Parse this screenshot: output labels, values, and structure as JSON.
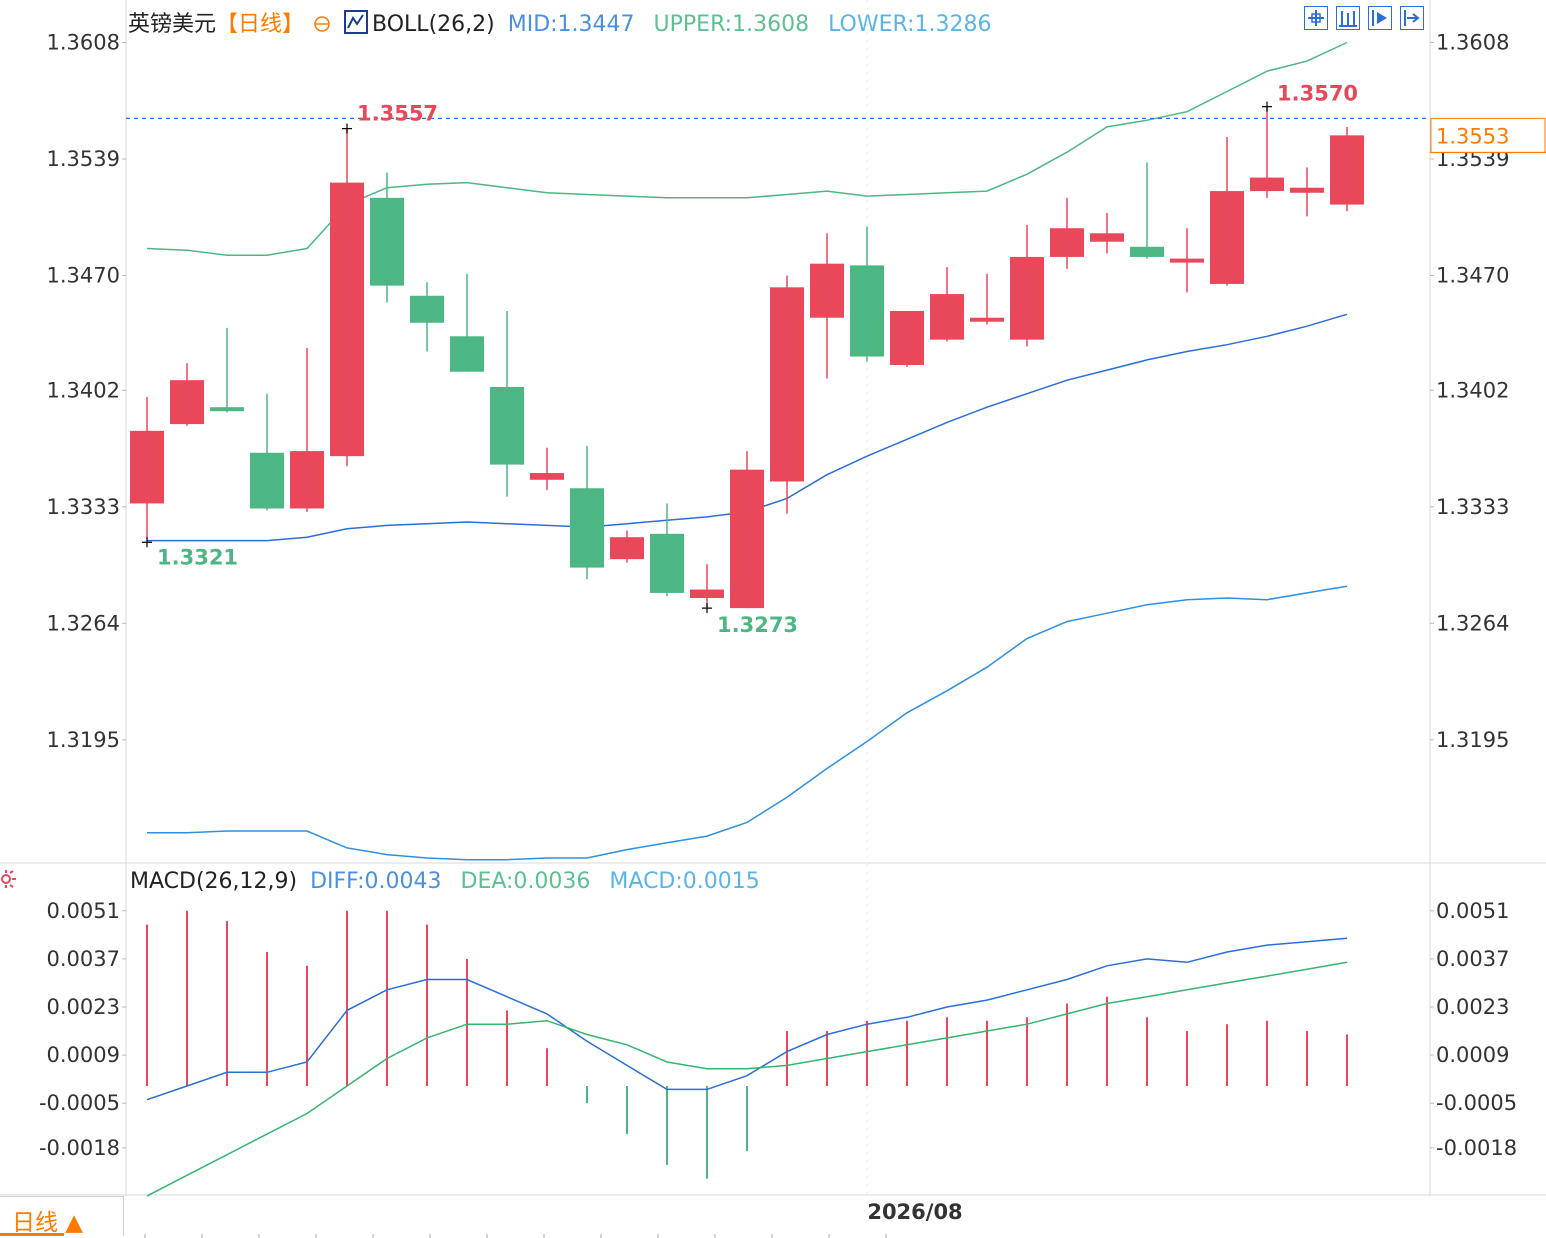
{
  "header": {
    "instrument": "英镑美元",
    "period": "【日线】",
    "indicator": "BOLL(26,2)",
    "mid": "MID:1.3447",
    "upper": "UPPER:1.3608",
    "lower": "LOWER:1.3286"
  },
  "macd_header": {
    "name": "MACD(26,12,9)",
    "diff": "DIFF:0.0043",
    "dea": "DEA:0.0036",
    "macd": "MACD:0.0015"
  },
  "period_button": "日线 ▲",
  "toolbar": [
    "crosshair-icon",
    "bar-view-icon",
    "play-icon",
    "jump-end-icon"
  ],
  "colors": {
    "up": "#e8485a",
    "down": "#4cb782",
    "boll_upper": "#4cb782",
    "boll_mid": "#2a6fd6",
    "boll_lower": "#2f8fe0",
    "diff": "#2a6fd6",
    "dea": "#36b56e",
    "current_price": "#ff7a00",
    "mid_text": "#4a90e2",
    "upper_text": "#5cc08f",
    "lower_text": "#5ab4e8"
  },
  "chart_data": [
    {
      "type": "candlestick",
      "title": "英镑美元【日线】",
      "x_label": "2026/08",
      "ylim": [
        1.3125,
        1.3634
      ],
      "y_ticks": [
        "1.3608",
        "1.3539",
        "1.3470",
        "1.3402",
        "1.3333",
        "1.3264",
        "1.3195"
      ],
      "current_price": "1.3553",
      "annotations": {
        "high_1": "1.3557",
        "high_2": "1.3570",
        "low_1": "1.3321",
        "low_2": "1.3273"
      },
      "candles": [
        {
          "o": 1.3335,
          "h": 1.3398,
          "l": 1.3314,
          "c": 1.3378
        },
        {
          "o": 1.3382,
          "h": 1.3418,
          "l": 1.3381,
          "c": 1.3408
        },
        {
          "o": 1.3392,
          "h": 1.3439,
          "l": 1.3389,
          "c": 1.339
        },
        {
          "o": 1.3365,
          "h": 1.34,
          "l": 1.3331,
          "c": 1.3332
        },
        {
          "o": 1.3332,
          "h": 1.3427,
          "l": 1.333,
          "c": 1.3366
        },
        {
          "o": 1.3363,
          "h": 1.3557,
          "l": 1.3357,
          "c": 1.3525
        },
        {
          "o": 1.3516,
          "h": 1.3531,
          "l": 1.3454,
          "c": 1.3464
        },
        {
          "o": 1.3458,
          "h": 1.3466,
          "l": 1.3425,
          "c": 1.3442
        },
        {
          "o": 1.3434,
          "h": 1.3471,
          "l": 1.3413,
          "c": 1.3413
        },
        {
          "o": 1.3404,
          "h": 1.3449,
          "l": 1.3339,
          "c": 1.3358
        },
        {
          "o": 1.3349,
          "h": 1.3368,
          "l": 1.3343,
          "c": 1.3353
        },
        {
          "o": 1.3344,
          "h": 1.3369,
          "l": 1.329,
          "c": 1.3297
        },
        {
          "o": 1.3302,
          "h": 1.3319,
          "l": 1.33,
          "c": 1.3315
        },
        {
          "o": 1.3317,
          "h": 1.3335,
          "l": 1.328,
          "c": 1.3282
        },
        {
          "o": 1.3279,
          "h": 1.3299,
          "l": 1.3273,
          "c": 1.3284
        },
        {
          "o": 1.3273,
          "h": 1.3366,
          "l": 1.3273,
          "c": 1.3355
        },
        {
          "o": 1.3348,
          "h": 1.347,
          "l": 1.3329,
          "c": 1.3463
        },
        {
          "o": 1.3445,
          "h": 1.3495,
          "l": 1.3409,
          "c": 1.3477
        },
        {
          "o": 1.3476,
          "h": 1.3499,
          "l": 1.3419,
          "c": 1.3422
        },
        {
          "o": 1.3417,
          "h": 1.3447,
          "l": 1.3416,
          "c": 1.3449
        },
        {
          "o": 1.3432,
          "h": 1.3475,
          "l": 1.3431,
          "c": 1.3459
        },
        {
          "o": 1.3443,
          "h": 1.3471,
          "l": 1.3441,
          "c": 1.3445
        },
        {
          "o": 1.3432,
          "h": 1.35,
          "l": 1.3428,
          "c": 1.3481
        },
        {
          "o": 1.3481,
          "h": 1.3516,
          "l": 1.3474,
          "c": 1.3498
        },
        {
          "o": 1.349,
          "h": 1.3507,
          "l": 1.3483,
          "c": 1.3495
        },
        {
          "o": 1.3487,
          "h": 1.3537,
          "l": 1.348,
          "c": 1.3481
        },
        {
          "o": 1.3479,
          "h": 1.3498,
          "l": 1.346,
          "c": 1.348
        },
        {
          "o": 1.3465,
          "h": 1.3552,
          "l": 1.3464,
          "c": 1.352
        },
        {
          "o": 1.352,
          "h": 1.357,
          "l": 1.3516,
          "c": 1.3528
        },
        {
          "o": 1.3519,
          "h": 1.3534,
          "l": 1.3505,
          "c": 1.3522
        },
        {
          "o": 1.3512,
          "h": 1.3558,
          "l": 1.3508,
          "c": 1.3553
        }
      ],
      "boll_upper": [
        1.3486,
        1.3485,
        1.3482,
        1.3482,
        1.3486,
        1.3512,
        1.3522,
        1.3524,
        1.3525,
        1.3522,
        1.3519,
        1.3518,
        1.3517,
        1.3516,
        1.3516,
        1.3516,
        1.3518,
        1.352,
        1.3517,
        1.3518,
        1.3519,
        1.352,
        1.353,
        1.3543,
        1.3558,
        1.3562,
        1.3567,
        1.3579,
        1.3591,
        1.3597,
        1.3608
      ],
      "boll_mid": [
        1.3313,
        1.3313,
        1.3313,
        1.3313,
        1.3315,
        1.332,
        1.3322,
        1.3323,
        1.3324,
        1.3323,
        1.3322,
        1.3321,
        1.3323,
        1.3325,
        1.3327,
        1.333,
        1.3338,
        1.3352,
        1.3363,
        1.3373,
        1.3383,
        1.3392,
        1.34,
        1.3408,
        1.3414,
        1.342,
        1.3425,
        1.3429,
        1.3434,
        1.344,
        1.3447
      ],
      "boll_lower": [
        1.314,
        1.314,
        1.3141,
        1.3141,
        1.3141,
        1.3131,
        1.3127,
        1.3125,
        1.3124,
        1.3124,
        1.3125,
        1.3125,
        1.313,
        1.3134,
        1.3138,
        1.3146,
        1.3161,
        1.3178,
        1.3194,
        1.3211,
        1.3224,
        1.3238,
        1.3255,
        1.3265,
        1.327,
        1.3275,
        1.3278,
        1.3279,
        1.3278,
        1.3282,
        1.3286
      ]
    },
    {
      "type": "macd",
      "title": "MACD(26,12,9)",
      "ylim": [
        -0.003,
        0.0056
      ],
      "y_ticks": [
        "0.0051",
        "0.0037",
        "0.0023",
        "0.0009",
        "-0.0005",
        "-0.0018"
      ],
      "diff": [
        -0.0004,
        0.0,
        0.0004,
        0.0004,
        0.0007,
        0.0022,
        0.0028,
        0.0031,
        0.0031,
        0.0026,
        0.0021,
        0.0013,
        0.0006,
        -0.0001,
        -0.0001,
        0.0003,
        0.001,
        0.0015,
        0.0018,
        0.002,
        0.0023,
        0.0025,
        0.0028,
        0.0031,
        0.0035,
        0.0037,
        0.0036,
        0.0039,
        0.0041,
        0.0042,
        0.0043
      ],
      "dea": [
        -0.0032,
        -0.0026,
        -0.002,
        -0.0014,
        -0.0008,
        0.0,
        0.0008,
        0.0014,
        0.0018,
        0.0018,
        0.0019,
        0.0015,
        0.0012,
        0.0007,
        0.0005,
        0.0005,
        0.0006,
        0.0008,
        0.001,
        0.0012,
        0.0014,
        0.0016,
        0.0018,
        0.0021,
        0.0024,
        0.0026,
        0.0028,
        0.003,
        0.0032,
        0.0034,
        0.0036
      ],
      "macd": [
        0.0047,
        0.0051,
        0.0048,
        0.0039,
        0.0035,
        0.0051,
        0.0051,
        0.0047,
        0.0037,
        0.0022,
        0.0011,
        -0.0005,
        -0.0014,
        -0.0023,
        -0.0027,
        -0.0019,
        0.0016,
        0.0016,
        0.0019,
        0.0019,
        0.002,
        0.0019,
        0.002,
        0.0024,
        0.0026,
        0.002,
        0.0016,
        0.0018,
        0.0019,
        0.0016,
        0.0015
      ]
    }
  ]
}
